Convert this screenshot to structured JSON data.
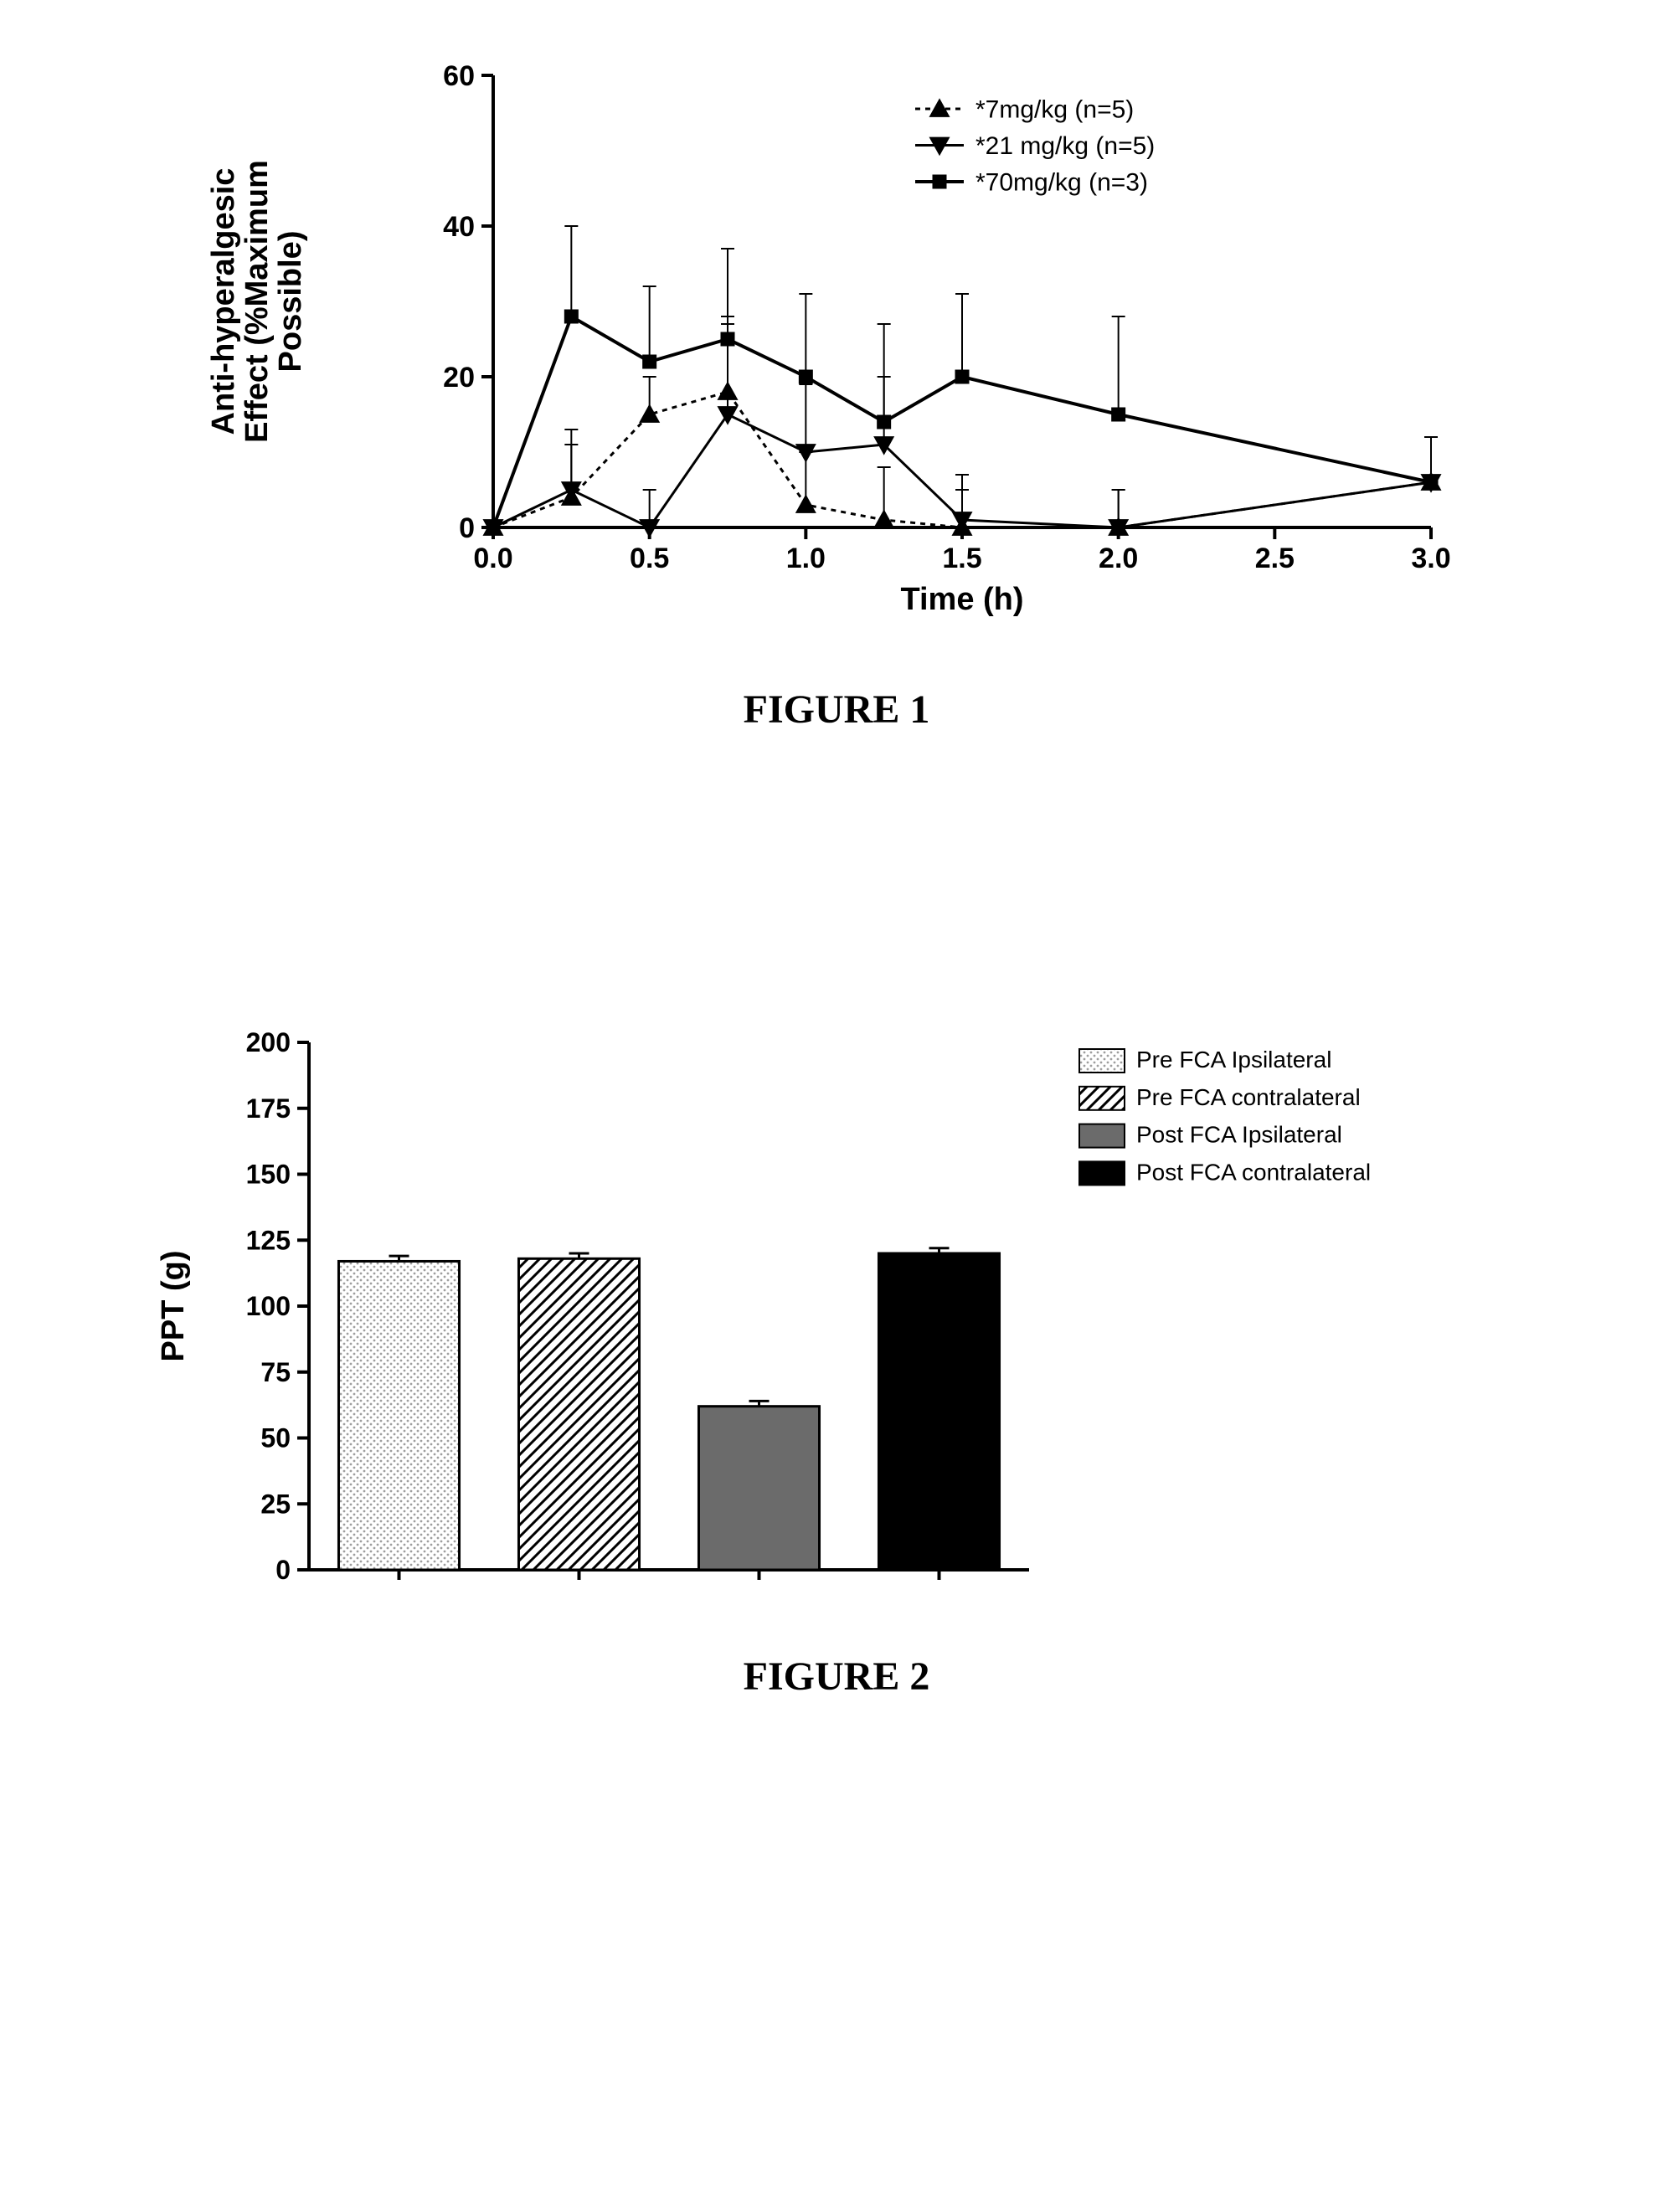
{
  "figure1": {
    "type": "line",
    "caption": "FIGURE 1",
    "ylabel": "Anti-hyperalgesic\nEffect (%Maximum\nPossible)",
    "xlabel": "Time (h)",
    "title_fontsize": 34,
    "label_fontsize": 38,
    "tick_fontsize": 34,
    "legend_fontsize": 30,
    "background_color": "#ffffff",
    "axis_color": "#000000",
    "axis_width": 4,
    "xlim": [
      0.0,
      3.0
    ],
    "ylim": [
      0,
      60
    ],
    "xticks": [
      0.0,
      0.5,
      1.0,
      1.5,
      2.0,
      2.5,
      3.0
    ],
    "xtick_labels": [
      "0.0",
      "0.5",
      "1.0",
      "1.5",
      "2.0",
      "2.5",
      "3.0"
    ],
    "yticks": [
      0,
      20,
      40,
      60
    ],
    "ytick_labels": [
      "0",
      "20",
      "40",
      "60"
    ],
    "series": [
      {
        "label": "*7mg/kg (n=5)",
        "marker": "triangle-up",
        "marker_fill": "#000000",
        "line_dash": "6,6",
        "line_width": 3,
        "color": "#000000",
        "marker_size": 14,
        "x": [
          0.0,
          0.25,
          0.5,
          0.75,
          1.0,
          1.25,
          1.5,
          2.0,
          3.0
        ],
        "y": [
          0,
          4,
          15,
          18,
          3,
          1,
          0,
          0,
          6
        ],
        "err": [
          0,
          7,
          5,
          10,
          7,
          7,
          5,
          5,
          6
        ]
      },
      {
        "label": "*21 mg/kg (n=5)",
        "marker": "triangle-down",
        "marker_fill": "#000000",
        "line_dash": "",
        "line_width": 3,
        "color": "#000000",
        "marker_size": 14,
        "x": [
          0.0,
          0.25,
          0.5,
          0.75,
          1.0,
          1.25,
          1.5,
          2.0,
          3.0
        ],
        "y": [
          0,
          5,
          0,
          15,
          10,
          11,
          1,
          0,
          6
        ],
        "err": [
          0,
          8,
          5,
          12,
          9,
          9,
          6,
          5,
          6
        ]
      },
      {
        "label": "*70mg/kg (n=3)",
        "marker": "square",
        "marker_fill": "#000000",
        "line_dash": "",
        "line_width": 4,
        "color": "#000000",
        "marker_size": 16,
        "x": [
          0.0,
          0.25,
          0.5,
          0.75,
          1.0,
          1.25,
          1.5,
          2.0,
          3.0
        ],
        "y": [
          0,
          28,
          22,
          25,
          20,
          14,
          20,
          15,
          6
        ],
        "err": [
          0,
          12,
          10,
          12,
          11,
          13,
          11,
          13,
          6
        ]
      }
    ]
  },
  "figure2": {
    "type": "bar",
    "caption": "FIGURE 2",
    "ylabel": "PPT (g)",
    "label_fontsize": 38,
    "tick_fontsize": 32,
    "legend_fontsize": 28,
    "background_color": "#ffffff",
    "axis_color": "#000000",
    "axis_width": 4,
    "ylim": [
      0,
      200
    ],
    "yticks": [
      0,
      25,
      50,
      75,
      100,
      125,
      150,
      175,
      200
    ],
    "ytick_labels": [
      "0",
      "25",
      "50",
      "75",
      "100",
      "125",
      "150",
      "175",
      "200"
    ],
    "bar_gap_ratio": 0.33,
    "bars": [
      {
        "label": "Pre FCA Ipsilateral",
        "value": 117,
        "err": 2,
        "fill": "pattern-dots",
        "fill_color": "#bdbdbd",
        "stroke": "#000000"
      },
      {
        "label": "Pre FCA contralateral",
        "value": 118,
        "err": 2,
        "fill": "pattern-diagonal",
        "fill_color": "#000000",
        "stroke": "#000000"
      },
      {
        "label": "Post FCA Ipsilateral",
        "value": 62,
        "err": 2,
        "fill": "solid",
        "fill_color": "#6b6b6b",
        "stroke": "#000000"
      },
      {
        "label": "Post FCA contralateral",
        "value": 120,
        "err": 2,
        "fill": "solid",
        "fill_color": "#000000",
        "stroke": "#000000"
      }
    ]
  }
}
